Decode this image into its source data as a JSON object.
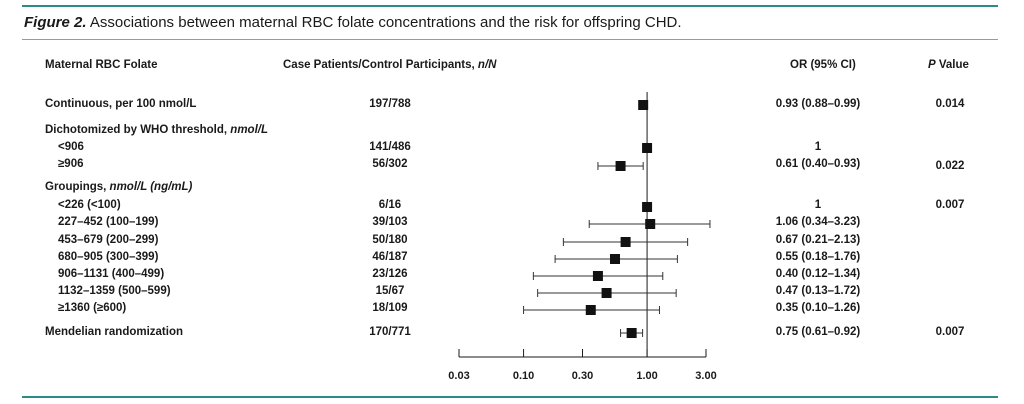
{
  "caption": {
    "lead": "Figure 2.",
    "text": " Associations between maternal RBC folate concentrations and the risk for offspring CHD."
  },
  "headers": {
    "label": "Maternal RBC Folate",
    "count": "Case Patients/Control Participants,",
    "count_unit": "n/N",
    "or": "OR (95% CI)",
    "p_italic": "P",
    "p_rest": " Value"
  },
  "rows": [
    {
      "label": "Continuous, per 100 nmol/L",
      "count": "197/788",
      "or_text": "0.93 (0.88–0.99)",
      "p": "0.014"
    },
    {
      "label": "Dichotomized by WHO threshold,",
      "label_unit": "nmol/L"
    },
    {
      "label": "<906",
      "count": "141/486",
      "or_text": "1",
      "p": ""
    },
    {
      "label": "≥906",
      "count": "56/302",
      "or_text": "0.61 (0.40–0.93)",
      "p": "0.022"
    },
    {
      "label": "Groupings,",
      "label_unit": "nmol/L (ng/mL)"
    },
    {
      "label": "<226 (<100)",
      "count": "6/16",
      "or_text": "1",
      "p": "0.007"
    },
    {
      "label": "227–452 (100–199)",
      "count": "39/103",
      "or_text": "1.06 (0.34–3.23)",
      "p": ""
    },
    {
      "label": "453–679 (200–299)",
      "count": "50/180",
      "or_text": "0.67 (0.21–2.13)",
      "p": ""
    },
    {
      "label": "680–905 (300–399)",
      "count": "46/187",
      "or_text": "0.55 (0.18–1.76)",
      "p": ""
    },
    {
      "label": "906–1131 (400–499)",
      "count": "23/126",
      "or_text": "0.40 (0.12–1.34)",
      "p": ""
    },
    {
      "label": "1132–1359 (500–599)",
      "count": "15/67",
      "or_text": "0.47 (0.13–1.72)",
      "p": ""
    },
    {
      "label": "≥1360 (≥600)",
      "count": "18/109",
      "or_text": "0.35 (0.10–1.26)",
      "p": ""
    },
    {
      "label": "Mendelian randomization",
      "count": "170/771",
      "or_text": "0.75 (0.61–0.92)",
      "p": "0.007"
    }
  ],
  "chart_data": {
    "type": "forest",
    "x_scale": "log",
    "xlim": [
      0.03,
      3.0
    ],
    "reference_line": 1.0,
    "tick_labels": [
      "0.03",
      "0.10",
      "0.30",
      "1.00",
      "3.00"
    ],
    "tick_values": [
      0.03,
      0.1,
      0.3,
      1.0,
      3.0
    ],
    "points": [
      {
        "label": "Continuous, per 100 nmol/L",
        "or": 0.93,
        "lo": 0.88,
        "hi": 0.99
      },
      {
        "label": "<906",
        "or": 1.0
      },
      {
        "label": "≥906",
        "or": 0.61,
        "lo": 0.4,
        "hi": 0.93
      },
      {
        "label": "<226 (<100)",
        "or": 1.0
      },
      {
        "label": "227–452 (100–199)",
        "or": 1.06,
        "lo": 0.34,
        "hi": 3.23
      },
      {
        "label": "453–679 (200–299)",
        "or": 0.67,
        "lo": 0.21,
        "hi": 2.13
      },
      {
        "label": "680–905 (300–399)",
        "or": 0.55,
        "lo": 0.18,
        "hi": 1.76
      },
      {
        "label": "906–1131 (400–499)",
        "or": 0.4,
        "lo": 0.12,
        "hi": 1.34
      },
      {
        "label": "1132–1359 (500–599)",
        "or": 0.47,
        "lo": 0.13,
        "hi": 1.72
      },
      {
        "label": "≥1360 (≥600)",
        "or": 0.35,
        "lo": 0.1,
        "hi": 1.26
      },
      {
        "label": "Mendelian randomization",
        "or": 0.75,
        "lo": 0.61,
        "hi": 0.92
      }
    ]
  }
}
